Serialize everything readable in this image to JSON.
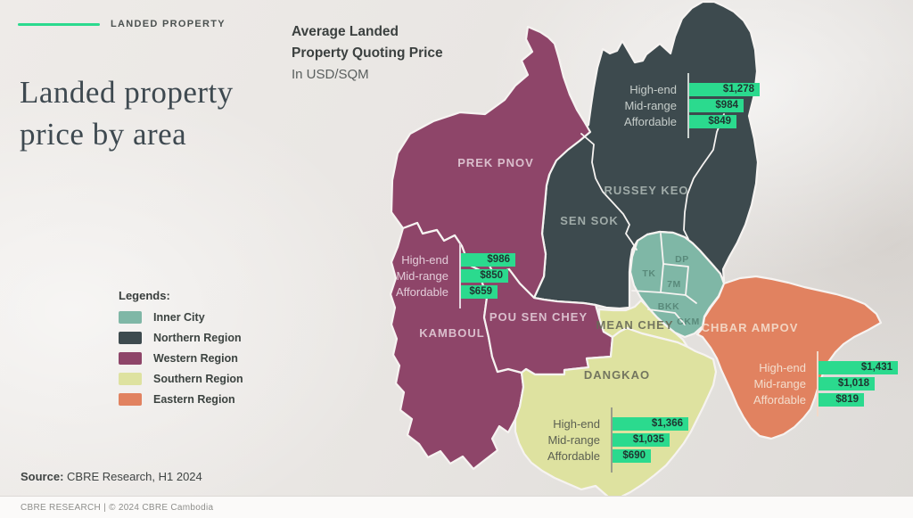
{
  "colors": {
    "accent_green": "#2BDA8E",
    "inner_city": "#7FB7A6",
    "northern": "#3D4A4E",
    "western": "#8E4569",
    "southern": "#DEE2A0",
    "eastern": "#E18260"
  },
  "header": {
    "eyebrow": "LANDED PROPERTY",
    "title_line1": "Landed property",
    "title_line2": "price by area"
  },
  "subtitle": {
    "line1": "Average Landed",
    "line2": "Property Quoting Price",
    "line3": "In USD/SQM"
  },
  "legend": {
    "heading": "Legends:",
    "items": [
      {
        "label": "Inner City",
        "color": "#7FB7A6"
      },
      {
        "label": "Northern Region",
        "color": "#3D4A4E"
      },
      {
        "label": "Western Region",
        "color": "#8E4569"
      },
      {
        "label": "Southern Region",
        "color": "#DEE2A0"
      },
      {
        "label": "Eastern Region",
        "color": "#E18260"
      }
    ]
  },
  "map": {
    "labels": [
      {
        "id": "prek-pnov",
        "text": "PREK PNOV"
      },
      {
        "id": "russey-keo",
        "text": "RUSSEY KEO"
      },
      {
        "id": "sen-sok",
        "text": "SEN SOK"
      },
      {
        "id": "kamboul",
        "text": "KAMBOUL"
      },
      {
        "id": "pou-sen-chey",
        "text": "POU SEN CHEY"
      },
      {
        "id": "mean-chey",
        "text": "MEAN CHEY"
      },
      {
        "id": "dangkao",
        "text": "DANGKAO"
      },
      {
        "id": "chbar-ampov",
        "text": "CHBAR AMPOV"
      },
      {
        "id": "tk",
        "text": "TK"
      },
      {
        "id": "dp",
        "text": "DP"
      },
      {
        "id": "7m",
        "text": "7M"
      },
      {
        "id": "bkk",
        "text": "BKK"
      },
      {
        "id": "ckm",
        "text": "CKM"
      }
    ]
  },
  "chart_data": [
    {
      "type": "bar",
      "region": "Northern Region",
      "orientation": "horizontal",
      "unit": "USD/SQM",
      "categories": [
        "High-end",
        "Mid-range",
        "Affordable"
      ],
      "values": [
        1278,
        984,
        849
      ],
      "values_fmt": [
        "$1,278",
        "$984",
        "$849"
      ]
    },
    {
      "type": "bar",
      "region": "Western Region",
      "orientation": "horizontal",
      "unit": "USD/SQM",
      "categories": [
        "High-end",
        "Mid-range",
        "Affordable"
      ],
      "values": [
        986,
        850,
        659
      ],
      "values_fmt": [
        "$986",
        "$850",
        "$659"
      ]
    },
    {
      "type": "bar",
      "region": "Southern Region",
      "orientation": "horizontal",
      "unit": "USD/SQM",
      "categories": [
        "High-end",
        "Mid-range",
        "Affordable"
      ],
      "values": [
        1366,
        1035,
        690
      ],
      "values_fmt": [
        "$1,366",
        "$1,035",
        "$690"
      ]
    },
    {
      "type": "bar",
      "region": "Eastern Region",
      "orientation": "horizontal",
      "unit": "USD/SQM",
      "categories": [
        "High-end",
        "Mid-range",
        "Affordable"
      ],
      "values": [
        1431,
        1018,
        819
      ],
      "values_fmt": [
        "$1,431",
        "$1,018",
        "$819"
      ]
    }
  ],
  "source": {
    "label": "Source:",
    "text": "CBRE Research, H1 2024"
  },
  "footer": {
    "text": "CBRE RESEARCH | © 2024 CBRE Cambodia"
  }
}
